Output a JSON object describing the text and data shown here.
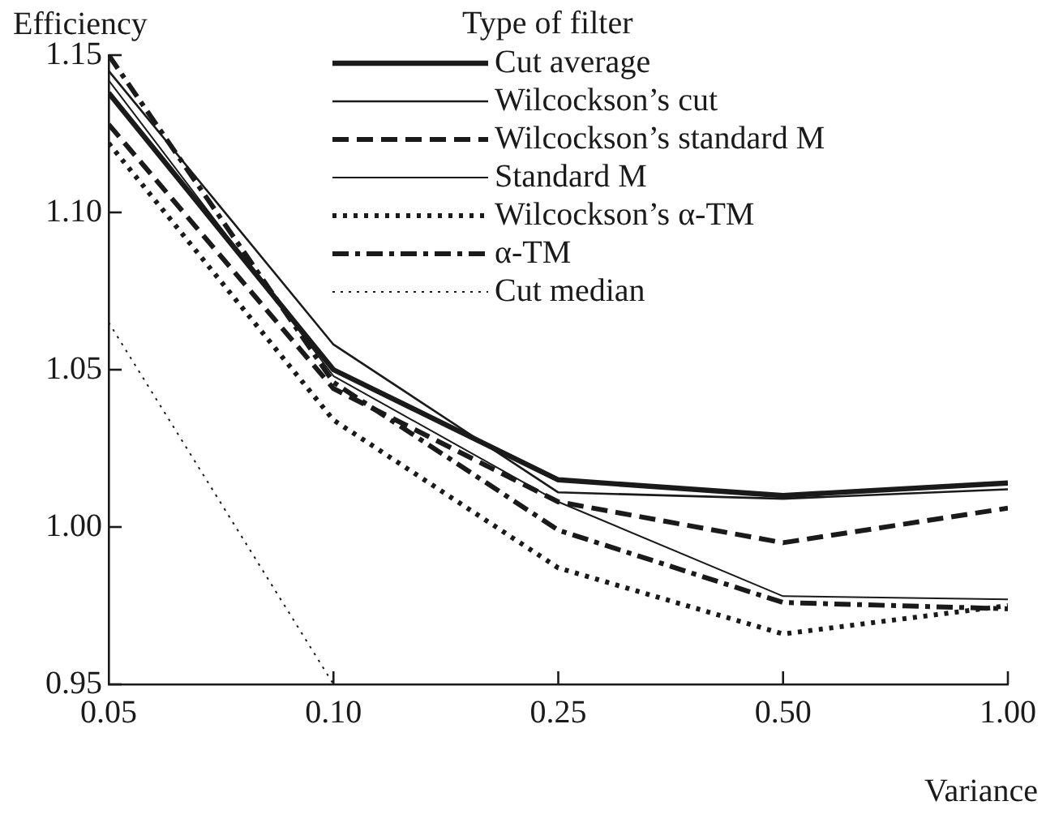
{
  "chart_data": {
    "type": "line",
    "ylabel": "Efficiency",
    "xlabel": "Variance",
    "legend_title": "Type of filter",
    "legend": "top right",
    "grid": false,
    "marker": "none",
    "categories": [
      "0.05",
      "0.10",
      "0.25",
      "0.50",
      "1.00"
    ],
    "ylim": [
      0.95,
      1.15
    ],
    "yticks": [
      {
        "value": 0.95,
        "label": "0.95"
      },
      {
        "value": 1.0,
        "label": "1.00"
      },
      {
        "value": 1.05,
        "label": "1.05"
      },
      {
        "value": 1.1,
        "label": "1.10"
      },
      {
        "value": 1.15,
        "label": "1.15"
      }
    ],
    "series": [
      {
        "name": "Cut average",
        "color": "#1a1a1a",
        "line_style": "solid",
        "values": [
          1.138,
          1.05,
          1.015,
          1.01,
          1.014
        ]
      },
      {
        "name": "Wilcockson’s cut",
        "color": "#1a1a1a",
        "line_style": "solid",
        "values": [
          1.145,
          1.058,
          1.011,
          1.009,
          1.012
        ]
      },
      {
        "name": "Wilcockson’s standard M",
        "color": "#1a1a1a",
        "line_style": "dashed",
        "values": [
          1.128,
          1.044,
          1.008,
          0.995,
          1.006
        ]
      },
      {
        "name": "Standard M",
        "color": "#1a1a1a",
        "line_style": "solid",
        "values": [
          1.142,
          1.048,
          1.008,
          0.978,
          0.977
        ]
      },
      {
        "name": "Wilcockson’s α-TM",
        "color": "#1a1a1a",
        "line_style": "dotted",
        "values": [
          1.122,
          1.034,
          0.987,
          0.966,
          0.975
        ]
      },
      {
        "name": "α-TM",
        "color": "#1a1a1a",
        "line_style": "dashdot",
        "values": [
          1.15,
          1.046,
          0.999,
          0.976,
          0.974
        ]
      },
      {
        "name": "Cut median",
        "color": "#1a1a1a",
        "line_style": "dotted",
        "values": [
          1.065,
          0.95,
          null,
          null,
          null
        ]
      }
    ]
  }
}
